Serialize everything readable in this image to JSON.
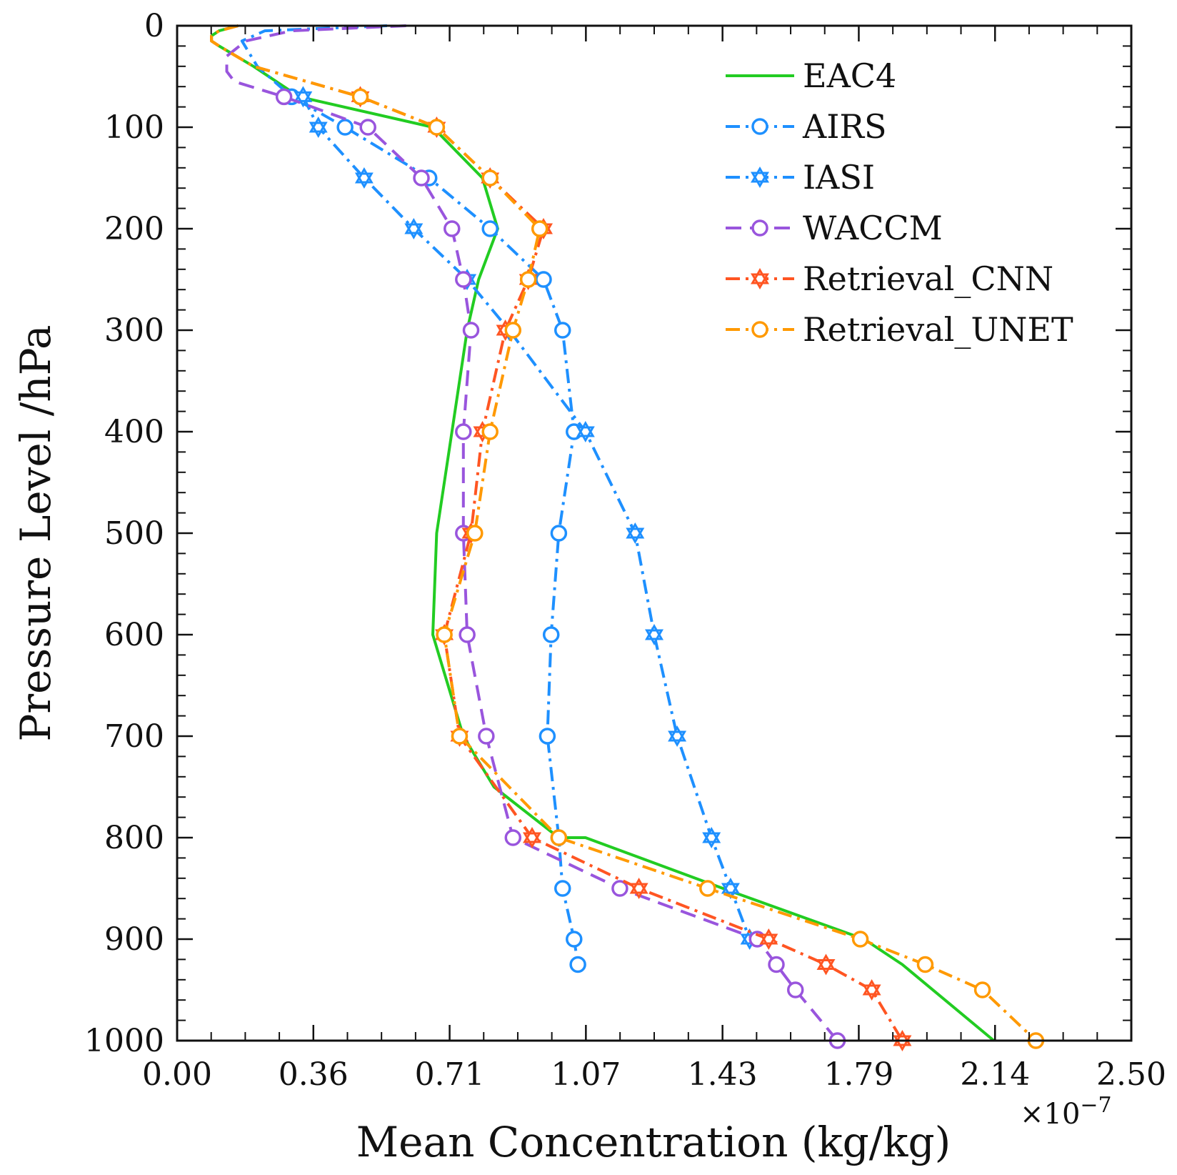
{
  "chart_data": {
    "type": "line",
    "title": "",
    "xlabel": "Mean Concentration (kg/kg)",
    "ylabel": "Pressure Level /hPa",
    "x_scale_label": "×10",
    "x_scale_exponent": "−7",
    "xlim": [
      0.0,
      2.5
    ],
    "ylim": [
      1000,
      0
    ],
    "y_inverted": true,
    "grid": false,
    "legend_position": "top-right",
    "x_ticks": [
      0.0,
      0.357,
      0.714,
      1.071,
      1.429,
      1.786,
      2.143,
      2.5
    ],
    "x_tick_labels": [
      "0.00",
      "0.36",
      "0.71",
      "1.07",
      "1.43",
      "1.79",
      "2.14",
      "2.50"
    ],
    "y_ticks": [
      0,
      100,
      200,
      300,
      400,
      500,
      600,
      700,
      800,
      900,
      1000
    ],
    "y_tick_labels": [
      "0",
      "100",
      "200",
      "300",
      "400",
      "500",
      "600",
      "700",
      "800",
      "900",
      "1000"
    ],
    "series": [
      {
        "name": "EAC4",
        "color": "#22cc22",
        "dash": "solid",
        "marker": "none",
        "x": [
          0.16,
          0.11,
          0.09,
          0.09,
          0.11,
          0.2,
          0.32,
          0.67,
          0.8,
          0.84,
          0.79,
          0.76,
          0.72,
          0.7,
          0.68,
          0.67,
          0.71,
          0.75,
          0.83,
          1.0,
          1.07,
          1.43,
          1.8,
          1.9,
          2.14
        ],
        "y": [
          0,
          5,
          10,
          15,
          20,
          40,
          70,
          100,
          150,
          200,
          250,
          300,
          400,
          450,
          500,
          600,
          650,
          700,
          750,
          800,
          800,
          850,
          900,
          925,
          1000
        ]
      },
      {
        "name": "AIRS",
        "color": "#1e90ff",
        "dash": "dashdot",
        "marker": "circle",
        "x": [
          0.55,
          0.23,
          0.17,
          0.21,
          0.3,
          0.44,
          0.66,
          0.82,
          0.96,
          1.01,
          1.04,
          1.0,
          0.98,
          0.97,
          1.0,
          1.01,
          1.04,
          1.05
        ],
        "y": [
          0,
          5,
          15,
          40,
          70,
          100,
          150,
          200,
          250,
          300,
          400,
          500,
          600,
          700,
          800,
          850,
          900,
          925
        ],
        "marker_indices": [
          4,
          5,
          6,
          7,
          8,
          9,
          10,
          11,
          12,
          13,
          14,
          15,
          16,
          17
        ]
      },
      {
        "name": "IASI",
        "color": "#1e90ff",
        "dash": "dashdot",
        "marker": "star",
        "x": [
          0.33,
          0.37,
          0.49,
          0.62,
          0.76,
          0.87,
          1.07,
          1.2,
          1.25,
          1.31,
          1.4,
          1.45,
          1.5
        ],
        "y": [
          70,
          100,
          150,
          200,
          250,
          300,
          400,
          500,
          600,
          700,
          800,
          850,
          900
        ],
        "marker_indices": [
          0,
          1,
          2,
          3,
          4,
          5,
          6,
          7,
          8,
          9,
          10,
          11,
          12
        ]
      },
      {
        "name": "WACCM",
        "color": "#9955dd",
        "dash": "dashed",
        "marker": "circle",
        "x": [
          0.6,
          0.3,
          0.18,
          0.13,
          0.13,
          0.15,
          0.28,
          0.5,
          0.64,
          0.72,
          0.75,
          0.77,
          0.75,
          0.75,
          0.76,
          0.81,
          0.88,
          1.16,
          1.52,
          1.57,
          1.62,
          1.73
        ],
        "y": [
          0,
          5,
          15,
          30,
          45,
          55,
          70,
          100,
          150,
          200,
          250,
          300,
          400,
          500,
          600,
          700,
          800,
          850,
          900,
          925,
          950,
          1000
        ],
        "marker_indices": [
          6,
          7,
          8,
          9,
          10,
          11,
          12,
          13,
          14,
          15,
          16,
          17,
          18,
          19,
          20,
          21
        ]
      },
      {
        "name": "Retrieval_CNN",
        "color": "#ff5522",
        "dash": "dashdot",
        "marker": "star",
        "x": [
          0.16,
          0.11,
          0.09,
          0.09,
          0.11,
          0.2,
          0.48,
          0.68,
          0.82,
          0.96,
          0.92,
          0.86,
          0.8,
          0.77,
          0.7,
          0.74,
          0.93,
          1.21,
          1.55,
          1.7,
          1.82,
          1.9
        ],
        "y": [
          0,
          5,
          10,
          15,
          20,
          40,
          70,
          100,
          150,
          200,
          250,
          300,
          400,
          500,
          600,
          700,
          800,
          850,
          900,
          925,
          950,
          1000
        ],
        "marker_indices": [
          6,
          7,
          8,
          9,
          10,
          11,
          12,
          13,
          14,
          15,
          16,
          17,
          18,
          19,
          20,
          21
        ]
      },
      {
        "name": "Retrieval_UNET",
        "color": "#ff9900",
        "dash": "dashdot",
        "marker": "circle",
        "x": [
          0.16,
          0.11,
          0.09,
          0.09,
          0.11,
          0.2,
          0.48,
          0.68,
          0.82,
          0.95,
          0.92,
          0.88,
          0.82,
          0.78,
          0.7,
          0.74,
          1.0,
          1.39,
          1.79,
          1.96,
          2.11,
          2.25
        ],
        "y": [
          0,
          5,
          10,
          15,
          20,
          40,
          70,
          100,
          150,
          200,
          250,
          300,
          400,
          500,
          600,
          700,
          800,
          850,
          900,
          925,
          950,
          1000
        ],
        "marker_indices": [
          6,
          7,
          8,
          9,
          10,
          11,
          12,
          13,
          14,
          15,
          16,
          17,
          18,
          19,
          20,
          21
        ]
      }
    ]
  }
}
